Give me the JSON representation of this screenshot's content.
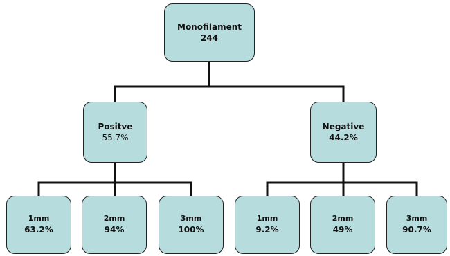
{
  "root": {
    "label": "Monofilament",
    "value": "244"
  },
  "positive": {
    "label": "Positve",
    "value": "55.7%",
    "children": [
      {
        "label": "1mm",
        "value": "63.2%"
      },
      {
        "label": "2mm",
        "value": "94%"
      },
      {
        "label": "3mm",
        "value": "100%"
      }
    ]
  },
  "negative": {
    "label": "Negative",
    "value": "44.2%",
    "children": [
      {
        "label": "1mm",
        "value": "9.2%"
      },
      {
        "label": "2mm",
        "value": "49%"
      },
      {
        "label": "3mm",
        "value": "90.7%"
      }
    ]
  },
  "colors": {
    "node_fill": "#b7dcdd",
    "node_border": "#222222",
    "connector": "#111111"
  }
}
